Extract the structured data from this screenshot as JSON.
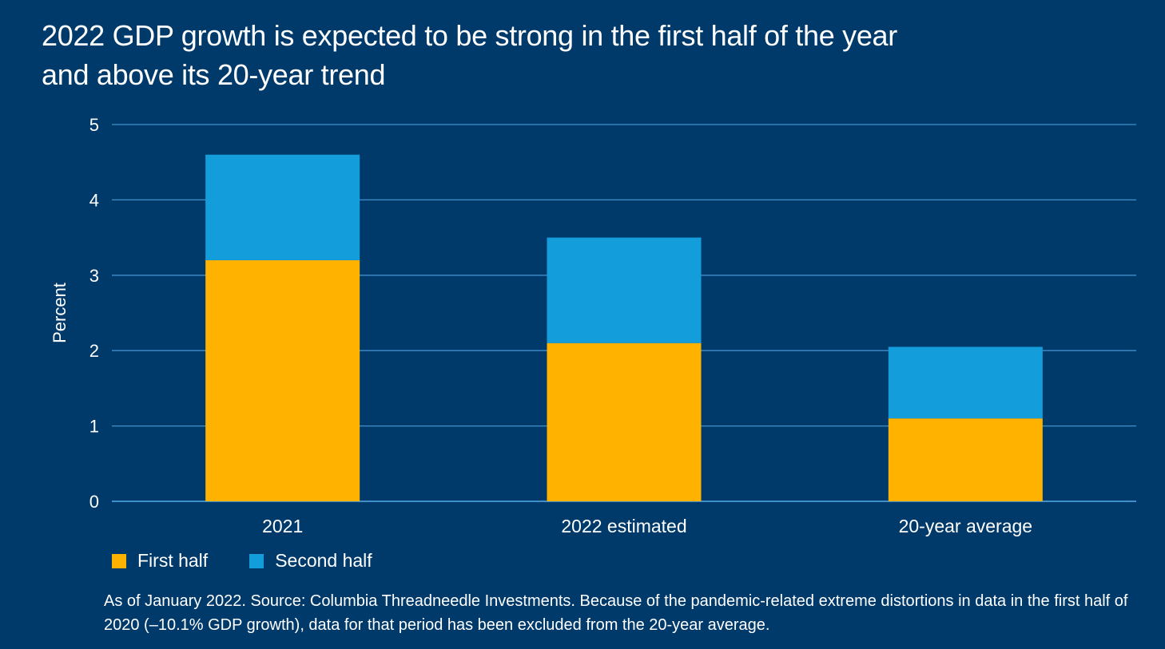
{
  "title": {
    "line1": "2022 GDP growth is expected to be strong in the first half of the year",
    "line2": "and above its 20-year trend"
  },
  "colors": {
    "background": "#003a6b",
    "first_half": "#ffb300",
    "second_half": "#139ddb",
    "gridline": "#3f8fcb"
  },
  "chart_data": {
    "type": "bar",
    "stacked": true,
    "categories": [
      "2021",
      "2022 estimated",
      "20-year average"
    ],
    "series": [
      {
        "name": "First half",
        "values": [
          3.2,
          2.1,
          1.1
        ]
      },
      {
        "name": "Second half",
        "values": [
          1.4,
          1.4,
          0.95
        ]
      }
    ],
    "ylabel": "Percent",
    "ylim": [
      0,
      5
    ],
    "yticks": [
      0,
      1,
      2,
      3,
      4,
      5
    ],
    "grid": true,
    "legend_position": "bottom-left"
  },
  "legend": {
    "first_half": "First half",
    "second_half": "Second half"
  },
  "note": {
    "text": "As of January 2022. Source: Columbia Threadneedle Investments. Because of the pandemic-related extreme distortions in data in the first half of 2020 (–10.1% GDP growth), data for that period has been excluded from the 20-year average."
  }
}
